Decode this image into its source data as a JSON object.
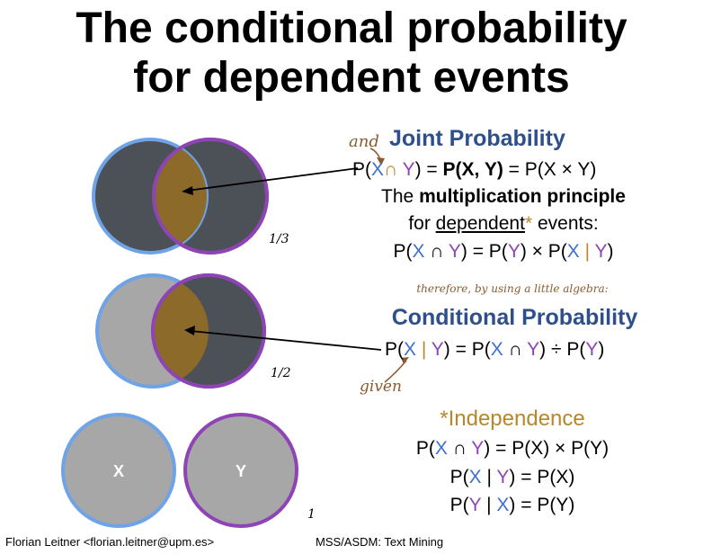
{
  "title": {
    "line1": "The conditional probability",
    "line2": "for dependent events"
  },
  "joint": {
    "annotation": "and",
    "heading": "Joint Probability",
    "formula": [
      "P(",
      "X",
      "∩",
      "Y",
      ") = ",
      "P(X, Y)",
      " = P(X × Y)"
    ],
    "principle_pre": "The ",
    "principle_bold": "multiplication principle",
    "for_pre": "for ",
    "for_under": "dependent",
    "for_star": "*",
    "for_post": " events:",
    "mult": [
      "P(",
      "X",
      " ∩ ",
      "Y",
      ") = P(",
      "Y",
      ") × P(",
      "X",
      " | ",
      "Y",
      ")"
    ]
  },
  "transition": "therefore, by using a little algebra:",
  "conditional": {
    "heading": "Conditional Probability",
    "formula": [
      "P(",
      "X",
      " | ",
      "Y",
      ") = P(",
      "X",
      " ∩ ",
      "Y",
      ") ÷ P(",
      "Y",
      ")"
    ],
    "annotation": "given"
  },
  "independence": {
    "heading": "*Independence",
    "line1": [
      "P(",
      "X",
      " ∩ ",
      "Y",
      ") = P(X) × P(Y)"
    ],
    "line2": [
      "P(",
      "X",
      " | ",
      "Y",
      ") = P(X)"
    ],
    "line3": [
      "P(",
      "Y",
      " | ",
      "X",
      ") = P(Y)"
    ]
  },
  "fractions": {
    "first": "1/3",
    "second": "1/2",
    "third": "1"
  },
  "circles": {
    "x_label": "X",
    "y_label": "Y"
  },
  "colors": {
    "x_blue": "#3d6fd1",
    "y_purple": "#8e44b5",
    "intersection_gold": "#8c6a2a",
    "dark_gray": "#4c5057",
    "light_gray": "#a7a7a7"
  },
  "footer": {
    "author": "Florian Leitner <florian.leitner@upm.es>",
    "course": "MSS/ASDM: Text Mining"
  }
}
